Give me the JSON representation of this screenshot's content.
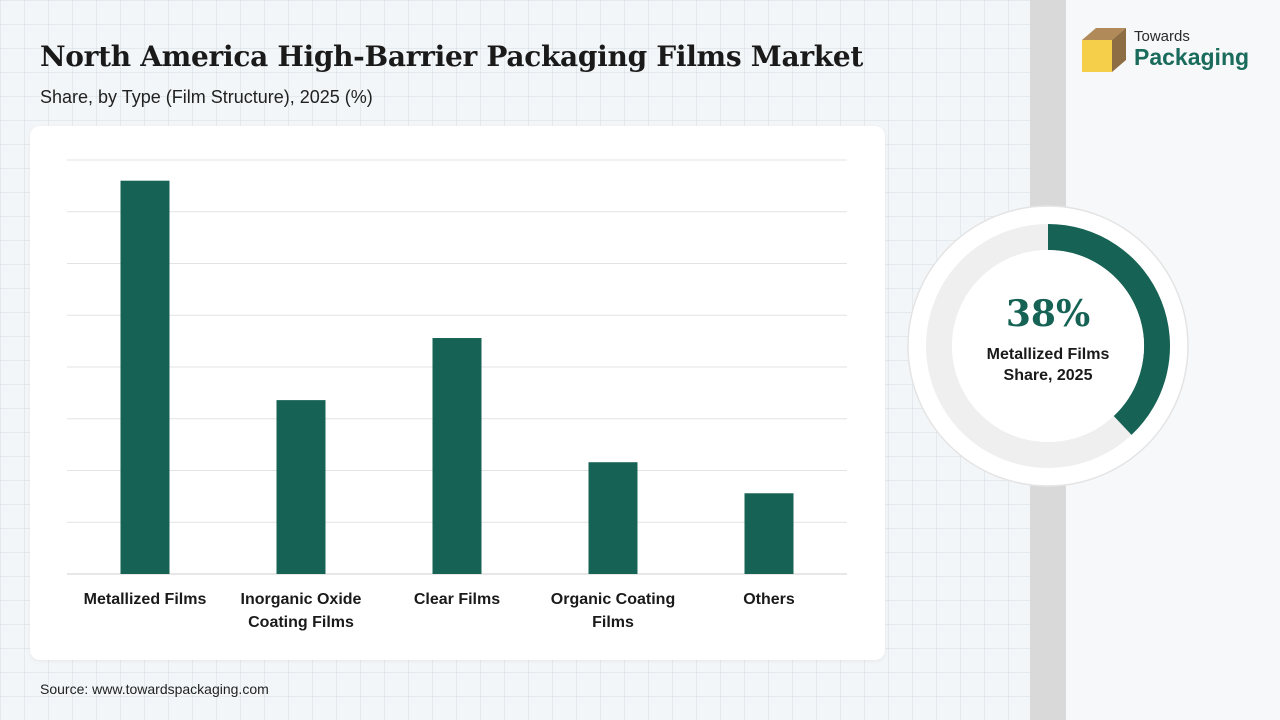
{
  "header": {
    "title": "North America High-Barrier Packaging Films Market",
    "subtitle": "Share, by Type (Film Structure), 2025 (%)"
  },
  "logo": {
    "line1": "Towards",
    "line2": "Packaging"
  },
  "source": "Source: www.towardspackaging.com",
  "colors": {
    "bar": "#166355",
    "donut_track": "#efefef",
    "accent_text": "#166355",
    "logo_box_top": "#b08a58",
    "logo_box_front": "#f5cf4a"
  },
  "highlight": {
    "value": 38,
    "value_text": "38%",
    "label_line1": "Metallized Films",
    "label_line2": "Share, 2025"
  },
  "chart_data": {
    "type": "bar",
    "title": "North America High-Barrier Packaging Films Market",
    "subtitle": "Share, by Type (Film Structure), 2025 (%)",
    "categories": [
      [
        "Metallized Films"
      ],
      [
        "Inorganic Oxide",
        "Coating Films"
      ],
      [
        "Clear Films"
      ],
      [
        "Organic Coating",
        "Films"
      ],
      [
        "Others"
      ]
    ],
    "values": [
      38,
      16.8,
      22.8,
      10.8,
      7.8
    ],
    "ylim": [
      0,
      40
    ],
    "grid": true,
    "y_tick_labels_shown": false,
    "xlabel": "",
    "ylabel": ""
  }
}
